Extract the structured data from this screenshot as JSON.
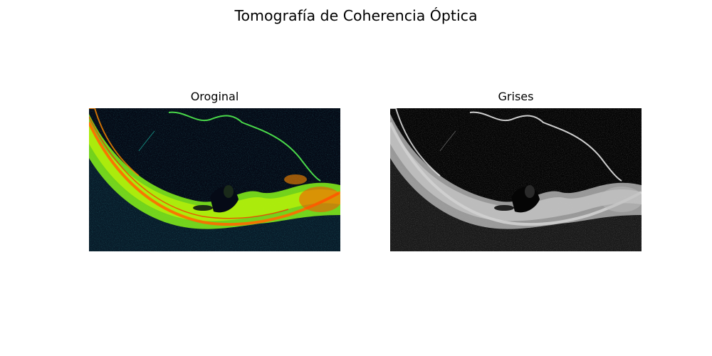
{
  "figure": {
    "title": "Tomografía de Coherencia Óptica"
  },
  "panels": [
    {
      "title": "Oroginal",
      "image": "oct-scan-color",
      "colormap": [
        "#050a16",
        "#0e6f86",
        "#1fd9c2",
        "#8aff1a",
        "#d8ff00",
        "#ff8a00",
        "#ff2000"
      ]
    },
    {
      "title": "Grises",
      "image": "oct-scan-grayscale",
      "colormap": [
        "#050505",
        "#3a3a3a",
        "#9a9a9a",
        "#d6d6d6",
        "#f2f2f2"
      ]
    }
  ]
}
